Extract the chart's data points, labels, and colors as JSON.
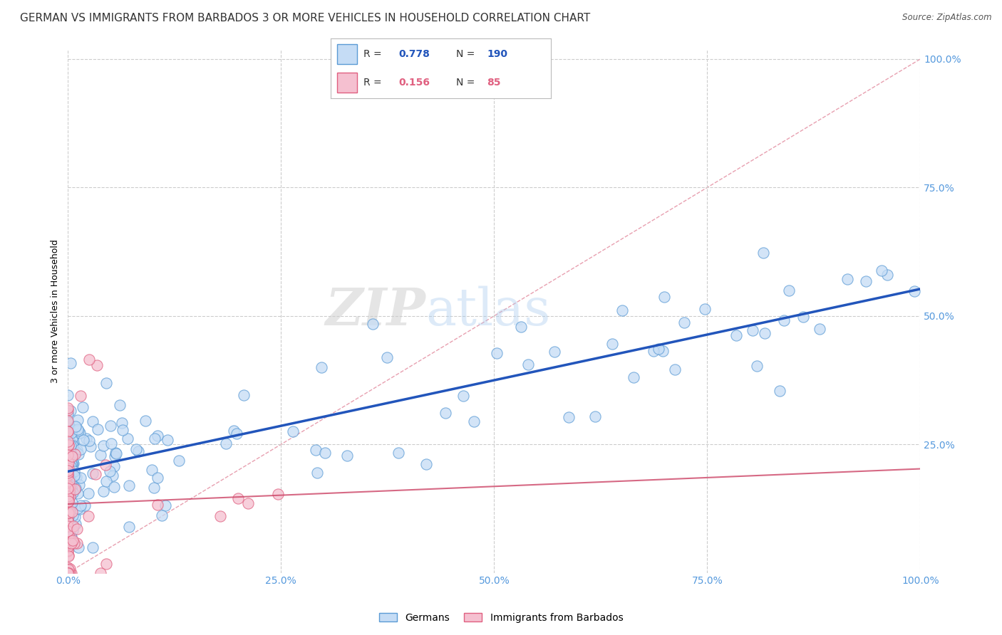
{
  "title": "GERMAN VS IMMIGRANTS FROM BARBADOS 3 OR MORE VEHICLES IN HOUSEHOLD CORRELATION CHART",
  "source": "Source: ZipAtlas.com",
  "ylabel": "3 or more Vehicles in Household",
  "xlim": [
    0,
    1
  ],
  "ylim": [
    0,
    1
  ],
  "xtick_labels": [
    "0.0%",
    "25.0%",
    "50.0%",
    "75.0%",
    "100.0%"
  ],
  "xtick_positions": [
    0.0,
    0.25,
    0.5,
    0.75,
    1.0
  ],
  "ytick_labels": [
    "25.0%",
    "50.0%",
    "75.0%",
    "100.0%"
  ],
  "ytick_positions": [
    0.25,
    0.5,
    0.75,
    1.0
  ],
  "german_color": "#c5dcf5",
  "german_edge_color": "#5b9bd5",
  "barbados_color": "#f5c0d0",
  "barbados_edge_color": "#e06080",
  "trend_german_color": "#2255bb",
  "trend_barbados_color": "#cc4466",
  "diagonal_color": "#e8a0b0",
  "R_german": 0.778,
  "N_german": 190,
  "R_barbados": 0.156,
  "N_barbados": 85,
  "legend_german_label": "Germans",
  "legend_barbados_label": "Immigrants from Barbados",
  "watermark_zip": "ZIP",
  "watermark_atlas": "atlas",
  "title_fontsize": 11,
  "axis_label_fontsize": 9,
  "tick_fontsize": 10,
  "legend_fontsize": 10,
  "background_color": "#ffffff",
  "tick_color": "#5599dd",
  "grid_color": "#cccccc"
}
